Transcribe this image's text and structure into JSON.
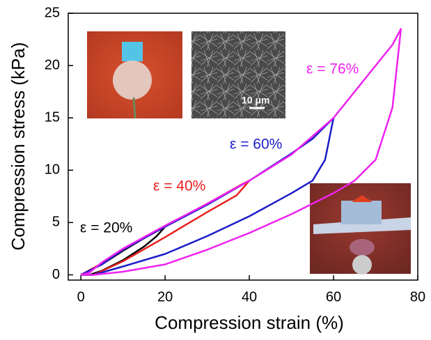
{
  "chart_data": {
    "type": "line",
    "xlabel": "Compression strain (%)",
    "ylabel": "Compression stress (kPa)",
    "xlim": [
      -3,
      80
    ],
    "xticks": [
      0,
      20,
      40,
      60,
      80
    ],
    "ylim": [
      -0.5,
      25
    ],
    "yticks": [
      0,
      5,
      10,
      15,
      20,
      25
    ],
    "annotations": [
      "10 μm"
    ],
    "series": [
      {
        "name": "ε = 20%",
        "color": "#000000",
        "x": [
          0,
          5,
          10,
          15,
          20,
          18,
          15,
          10,
          5,
          2,
          0
        ],
        "values": [
          0,
          1,
          2.3,
          3.5,
          4.6,
          3.7,
          2.7,
          1.4,
          0.4,
          0,
          0
        ]
      },
      {
        "name": "ε = 40%",
        "color": "#e8201e",
        "x": [
          0,
          5,
          10,
          20,
          30,
          38,
          40,
          37,
          30,
          20,
          10,
          3,
          0
        ],
        "values": [
          0,
          1.1,
          2.4,
          4.6,
          6.8,
          8.6,
          9,
          7.6,
          6,
          3.6,
          1.3,
          0,
          0
        ]
      },
      {
        "name": "ε = 60%",
        "color": "#1c1cc8",
        "x": [
          0,
          5,
          10,
          20,
          30,
          40,
          50,
          55,
          60,
          58,
          55,
          50,
          40,
          30,
          20,
          10,
          3,
          0
        ],
        "values": [
          0,
          1,
          2.4,
          4.6,
          6.7,
          9,
          11.6,
          13,
          15,
          11,
          9,
          7.8,
          5.6,
          3.7,
          2,
          0.8,
          0,
          0
        ]
      },
      {
        "name": "ε = 76%",
        "color": "#ee22ee",
        "x": [
          0,
          2,
          5,
          10,
          20,
          30,
          40,
          50,
          60,
          65,
          70,
          74,
          76,
          74,
          70,
          65,
          60,
          50,
          40,
          30,
          20,
          10,
          3,
          0
        ],
        "values": [
          0,
          0.2,
          1.2,
          2.5,
          4.7,
          6.8,
          9,
          11.5,
          15,
          17.5,
          20,
          22,
          23.5,
          16,
          11,
          9,
          7.8,
          5.8,
          4,
          2.4,
          1,
          0.3,
          0,
          0
        ]
      }
    ]
  }
}
